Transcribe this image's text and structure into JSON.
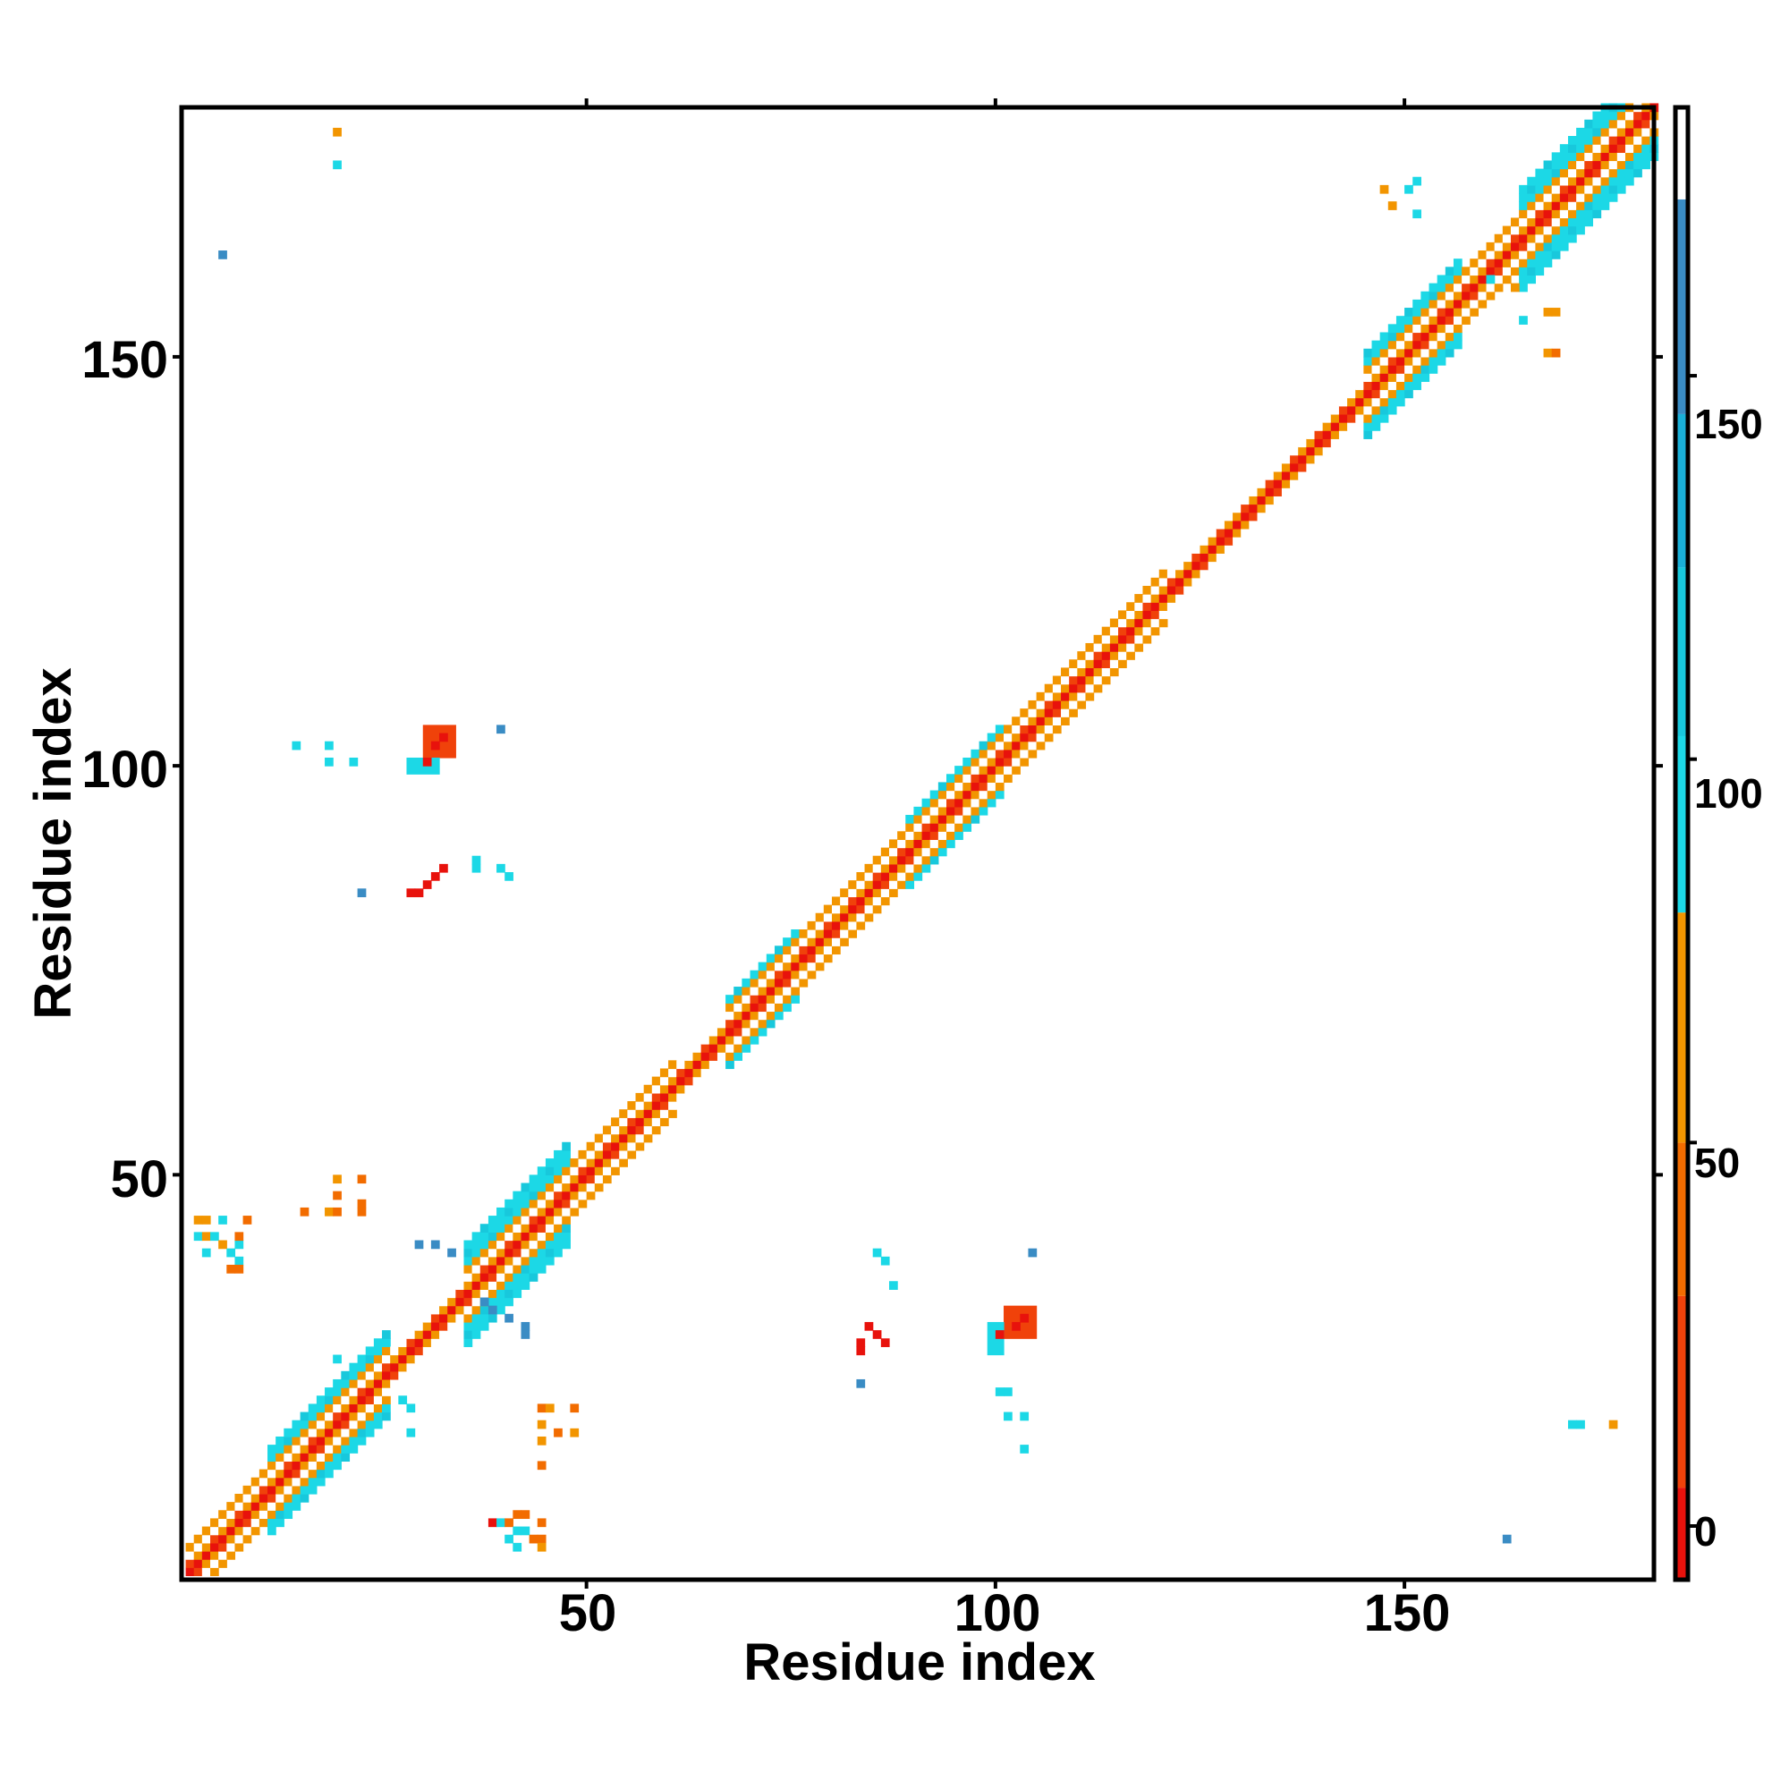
{
  "chart_data": {
    "type": "heatmap",
    "title": "",
    "xlabel": "Residue index",
    "ylabel": "Residue index",
    "xlim": [
      1,
      180
    ],
    "ylim": [
      1,
      180
    ],
    "x_ticks": [
      "50",
      "100",
      "150"
    ],
    "y_ticks": [
      "50",
      "100",
      "150"
    ],
    "colorbar": {
      "range": [
        -7,
        185
      ],
      "ticks": [
        "0",
        "50",
        "100",
        "150"
      ],
      "bins": [
        {
          "from": -7,
          "to": 5,
          "color": "#e8120c"
        },
        {
          "from": 5,
          "to": 30,
          "color": "#f0420a"
        },
        {
          "from": 30,
          "to": 50,
          "color": "#f26c00"
        },
        {
          "from": 50,
          "to": 80,
          "color": "#f29500"
        },
        {
          "from": 80,
          "to": 103,
          "color": "#1cd8e6"
        },
        {
          "from": 103,
          "to": 125,
          "color": "#18c8dc"
        },
        {
          "from": 125,
          "to": 145,
          "color": "#1ab0d8"
        },
        {
          "from": 145,
          "to": 173,
          "color": "#3a8cc4"
        },
        {
          "from": 173,
          "to": 185,
          "color": "#ffffff"
        }
      ]
    },
    "diagonal_segments": [
      {
        "from": 1,
        "to": 10,
        "width": 3
      },
      {
        "from": 10,
        "to": 25,
        "width": 5
      },
      {
        "from": 25,
        "to": 34,
        "width": 2
      },
      {
        "from": 34,
        "to": 47,
        "width": 6
      },
      {
        "from": 47,
        "to": 60,
        "width": 3
      },
      {
        "from": 60,
        "to": 66,
        "width": 2
      },
      {
        "from": 66,
        "to": 75,
        "width": 4
      },
      {
        "from": 75,
        "to": 88,
        "width": 3
      },
      {
        "from": 88,
        "to": 100,
        "width": 4
      },
      {
        "from": 100,
        "to": 120,
        "width": 3
      },
      {
        "from": 120,
        "to": 144,
        "width": 2
      },
      {
        "from": 144,
        "to": 156,
        "width": 5
      },
      {
        "from": 156,
        "to": 163,
        "width": 3
      },
      {
        "from": 163,
        "to": 180,
        "width": 6
      }
    ],
    "patches": [
      {
        "x": 30,
        "y": 101,
        "w": 4,
        "h": 4,
        "color": "#f0420a"
      },
      {
        "x": 28,
        "y": 99,
        "w": 4,
        "h": 2,
        "color": "#1cd8e6"
      },
      {
        "x": 101,
        "y": 30,
        "w": 4,
        "h": 4,
        "color": "#f0420a"
      },
      {
        "x": 99,
        "y": 28,
        "w": 2,
        "h": 4,
        "color": "#1cd8e6"
      }
    ],
    "points": [
      [
        19,
        177,
        "#f29500"
      ],
      [
        19,
        173,
        "#1cd8e6"
      ],
      [
        5,
        162,
        "#3a8cc4"
      ],
      [
        14,
        102,
        "#1cd8e6"
      ],
      [
        18,
        102,
        "#1cd8e6"
      ],
      [
        18,
        100,
        "#1cd8e6"
      ],
      [
        21,
        100,
        "#1cd8e6"
      ],
      [
        39,
        104,
        "#3a8cc4"
      ],
      [
        28,
        84,
        "#e8120c"
      ],
      [
        29,
        84,
        "#e8120c"
      ],
      [
        30,
        85,
        "#e8120c"
      ],
      [
        31,
        86,
        "#e8120c"
      ],
      [
        32,
        87,
        "#e8120c"
      ],
      [
        22,
        84,
        "#3a8cc4"
      ],
      [
        36,
        87,
        "#1cd8e6"
      ],
      [
        36,
        88,
        "#1cd8e6"
      ],
      [
        39,
        87,
        "#1cd8e6"
      ],
      [
        40,
        86,
        "#1cd8e6"
      ],
      [
        19,
        49,
        "#f29500"
      ],
      [
        22,
        49,
        "#f26c00"
      ],
      [
        19,
        47,
        "#f26c00"
      ],
      [
        22,
        46,
        "#f26c00"
      ],
      [
        15,
        45,
        "#f26c00"
      ],
      [
        18,
        45,
        "#f29500"
      ],
      [
        19,
        45,
        "#f26c00"
      ],
      [
        22,
        45,
        "#f26c00"
      ],
      [
        2,
        44,
        "#f29500"
      ],
      [
        3,
        44,
        "#f29500"
      ],
      [
        5,
        44,
        "#1cd8e6"
      ],
      [
        8,
        44,
        "#f26c00"
      ],
      [
        2,
        42,
        "#1cd8e6"
      ],
      [
        3,
        42,
        "#f29500"
      ],
      [
        4,
        42,
        "#1cd8e6"
      ],
      [
        5,
        41,
        "#f29500"
      ],
      [
        7,
        41,
        "#1cd8e6"
      ],
      [
        7,
        42,
        "#f26c00"
      ],
      [
        3,
        40,
        "#1cd8e6"
      ],
      [
        6,
        40,
        "#1cd8e6"
      ],
      [
        7,
        39,
        "#1cd8e6"
      ],
      [
        6,
        38,
        "#f26c00"
      ],
      [
        7,
        38,
        "#f26c00"
      ],
      [
        29,
        41,
        "#3a8cc4"
      ],
      [
        31,
        41,
        "#3a8cc4"
      ],
      [
        33,
        40,
        "#3a8cc4"
      ],
      [
        19,
        27,
        "#1cd8e6"
      ],
      [
        27,
        22,
        "#1cd8e6"
      ],
      [
        28,
        21,
        "#1cd8e6"
      ],
      [
        28,
        18,
        "#1cd8e6"
      ],
      [
        44,
        21,
        "#f26c00"
      ],
      [
        45,
        21,
        "#f29500"
      ],
      [
        48,
        21,
        "#f26c00"
      ],
      [
        44,
        19,
        "#f29500"
      ],
      [
        46,
        18,
        "#f26c00"
      ],
      [
        48,
        18,
        "#f29500"
      ],
      [
        44,
        17,
        "#f29500"
      ],
      [
        44,
        14,
        "#f26c00"
      ],
      [
        38,
        7,
        "#e8120c"
      ],
      [
        39,
        7,
        "#1cd8e6"
      ],
      [
        40,
        7,
        "#f26c00"
      ],
      [
        41,
        8,
        "#f26c00"
      ],
      [
        42,
        8,
        "#f26c00"
      ],
      [
        41,
        6,
        "#1cd8e6"
      ],
      [
        42,
        6,
        "#1cd8e6"
      ],
      [
        44,
        7,
        "#f26c00"
      ],
      [
        40,
        5,
        "#1cd8e6"
      ],
      [
        41,
        4,
        "#1cd8e6"
      ],
      [
        43,
        5,
        "#f26c00"
      ],
      [
        44,
        5,
        "#f26c00"
      ],
      [
        44,
        4,
        "#f29500"
      ],
      [
        37,
        34,
        "#3a8cc4"
      ],
      [
        38,
        33,
        "#3a8cc4"
      ],
      [
        40,
        32,
        "#3a8cc4"
      ],
      [
        42,
        31,
        "#3a8cc4"
      ],
      [
        42,
        30,
        "#3a8cc4"
      ],
      [
        85,
        40,
        "#1cd8e6"
      ],
      [
        86,
        39,
        "#1cd8e6"
      ],
      [
        87,
        36,
        "#1cd8e6"
      ],
      [
        84,
        31,
        "#e8120c"
      ],
      [
        85,
        30,
        "#e8120c"
      ],
      [
        86,
        29,
        "#e8120c"
      ],
      [
        83,
        29,
        "#e8120c"
      ],
      [
        83,
        28,
        "#e8120c"
      ],
      [
        83,
        24,
        "#3a8cc4"
      ],
      [
        104,
        40,
        "#3a8cc4"
      ],
      [
        100,
        23,
        "#1cd8e6"
      ],
      [
        101,
        23,
        "#1cd8e6"
      ],
      [
        101,
        20,
        "#1cd8e6"
      ],
      [
        103,
        20,
        "#1cd8e6"
      ],
      [
        103,
        16,
        "#1cd8e6"
      ],
      [
        170,
        19,
        "#1cd8e6"
      ],
      [
        171,
        19,
        "#1cd8e6"
      ],
      [
        175,
        19,
        "#f29500"
      ],
      [
        162,
        5,
        "#3a8cc4"
      ],
      [
        147,
        170,
        "#f29500"
      ],
      [
        150,
        170,
        "#1cd8e6"
      ],
      [
        151,
        171,
        "#1cd8e6"
      ],
      [
        148,
        168,
        "#f29500"
      ],
      [
        151,
        167,
        "#1cd8e6"
      ],
      [
        160,
        159,
        "#1cd8e6"
      ],
      [
        163,
        158,
        "#f29500"
      ],
      [
        167,
        155,
        "#f29500"
      ],
      [
        168,
        155,
        "#f29500"
      ],
      [
        164,
        154,
        "#1cd8e6"
      ],
      [
        167,
        150,
        "#f29500"
      ],
      [
        168,
        150,
        "#f26c00"
      ]
    ]
  }
}
